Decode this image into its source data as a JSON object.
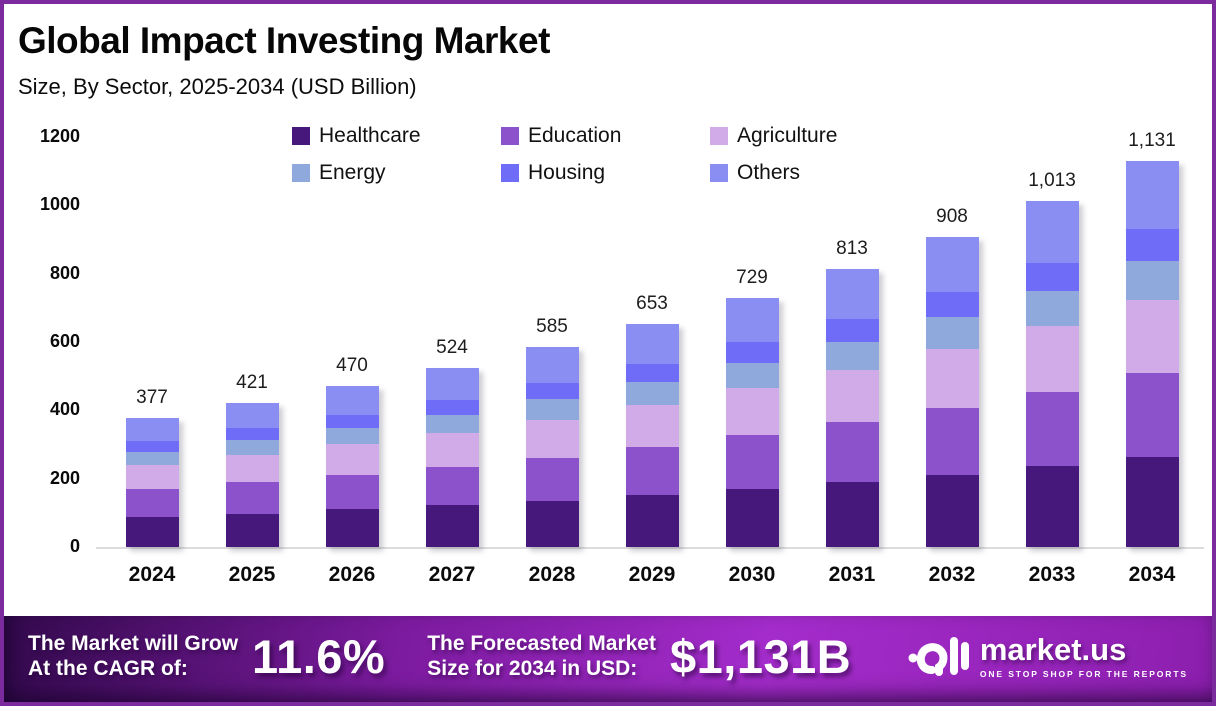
{
  "header": {
    "title": "Global Impact Investing Market",
    "subtitle": "Size, By Sector, 2025-2034 (USD Billion)"
  },
  "chart_data": {
    "type": "bar",
    "stacked": true,
    "title": "Global Impact Investing Market Size, By Sector, 2025-2034 (USD Billion)",
    "categories": [
      "2024",
      "2025",
      "2026",
      "2027",
      "2028",
      "2029",
      "2030",
      "2031",
      "2032",
      "2033",
      "2034"
    ],
    "totals": [
      377,
      421,
      470,
      524,
      585,
      653,
      729,
      813,
      908,
      1013,
      1131
    ],
    "totals_display": [
      "377",
      "421",
      "470",
      "524",
      "585",
      "653",
      "729",
      "813",
      "908",
      "1,013",
      "1,131"
    ],
    "series": [
      {
        "name": "Healthcare",
        "color": "#46187c",
        "values": [
          88,
          98,
          110,
          122,
          136,
          152,
          170,
          189,
          212,
          236,
          264
        ]
      },
      {
        "name": "Education",
        "color": "#8c52cc",
        "values": [
          81,
          91,
          102,
          113,
          126,
          141,
          157,
          176,
          196,
          219,
          244
        ]
      },
      {
        "name": "Agriculture",
        "color": "#d0abe8",
        "values": [
          71,
          80,
          89,
          99,
          111,
          123,
          138,
          154,
          172,
          191,
          214
        ]
      },
      {
        "name": "Energy",
        "color": "#90a9dc",
        "values": [
          38,
          43,
          47,
          53,
          59,
          66,
          74,
          82,
          92,
          102,
          114
        ]
      },
      {
        "name": "Housing",
        "color": "#6f6cf8",
        "values": [
          31,
          35,
          39,
          43,
          49,
          54,
          61,
          67,
          75,
          84,
          94
        ]
      },
      {
        "name": "Others",
        "color": "#8a8df2",
        "values": [
          68,
          74,
          83,
          94,
          104,
          117,
          129,
          145,
          161,
          181,
          201
        ]
      }
    ],
    "xlabel": "",
    "ylabel": "",
    "ylim": [
      0,
      1200
    ],
    "yticks": [
      0,
      200,
      400,
      600,
      800,
      1000,
      1200
    ],
    "grid": false,
    "legend_position": "top"
  },
  "banner": {
    "cagr_label_line1": "The Market will Grow",
    "cagr_label_line2": "At the CAGR of:",
    "cagr_value": "11.6%",
    "forecast_label_line1": "The Forecasted Market",
    "forecast_label_line2": "Size for 2034 in USD:",
    "forecast_value": "$1,131B",
    "brand_name": "market.us",
    "brand_tagline": "ONE STOP SHOP FOR THE REPORTS"
  },
  "colors": {
    "frame_border": "#7b2b9e",
    "banner_gradient_start": "#330a4d",
    "banner_gradient_mid": "#a42ccb",
    "banner_gradient_end": "#8c1fae",
    "baseline": "#dcdcdc",
    "text": "#0a0a0a"
  }
}
